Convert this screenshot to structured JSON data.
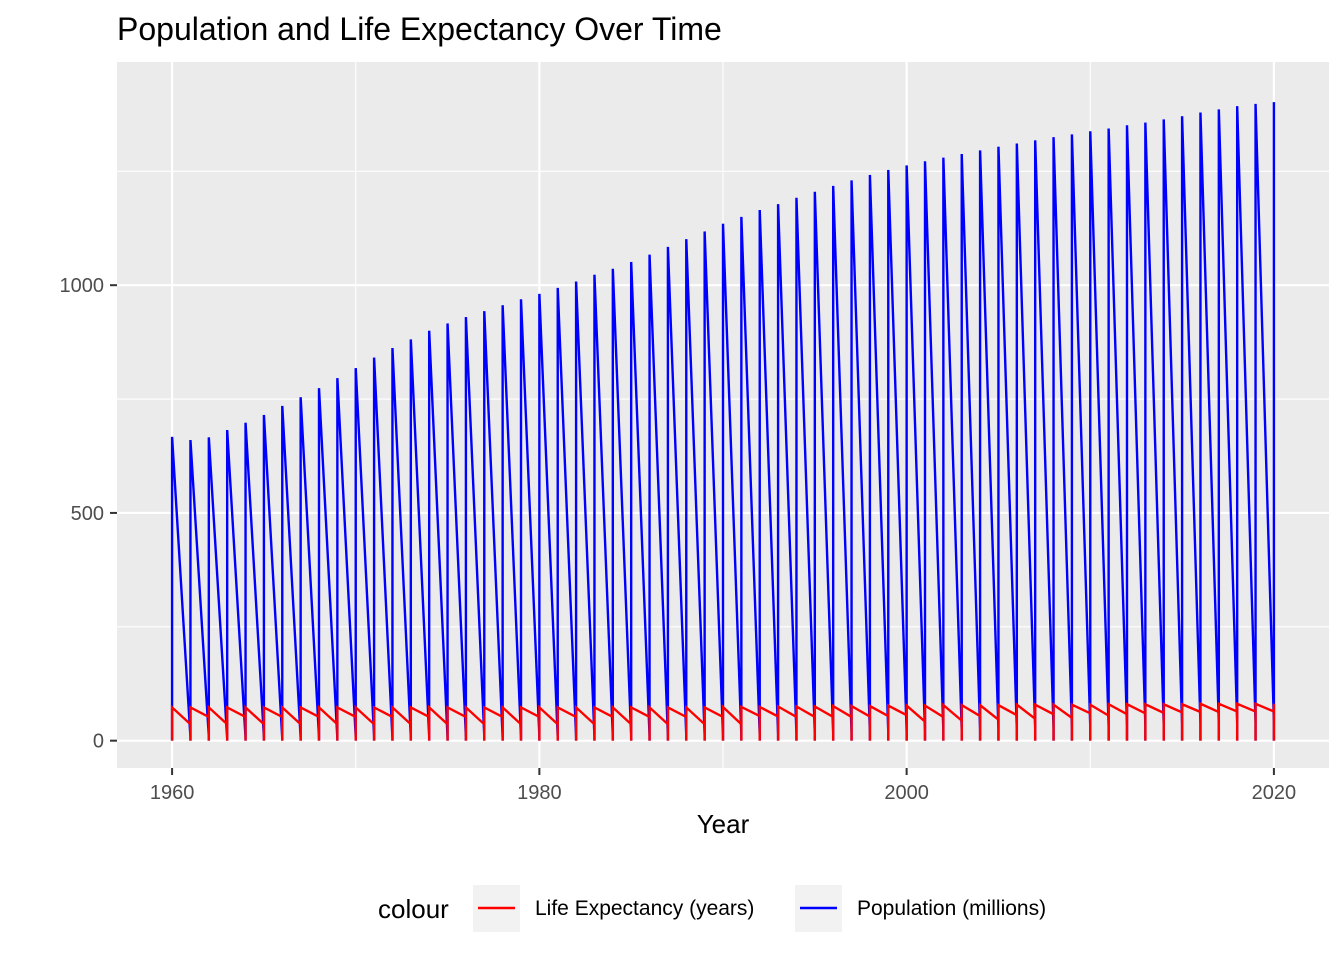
{
  "chart_data": {
    "type": "line",
    "title": "Population and Life Expectancy Over Time",
    "xlabel": "Year",
    "ylabel": "",
    "xlim": [
      1957,
      2023
    ],
    "ylim": [
      -60,
      1490
    ],
    "x_ticks": [
      "1960",
      "1980",
      "2000",
      "2020"
    ],
    "y_ticks": [
      "0",
      "500",
      "1000"
    ],
    "legend_title": "colour",
    "legend_position": "bottom",
    "grid": true,
    "series": [
      {
        "name": "Population (millions)",
        "color": "#0000ff",
        "pattern": "per year: rises vertically from 0 to the annual peak, then steps to the next year's low value",
        "x": [
          1960,
          1961,
          1962,
          1963,
          1964,
          1965,
          1966,
          1967,
          1968,
          1969,
          1970,
          1971,
          1972,
          1973,
          1974,
          1975,
          1976,
          1977,
          1978,
          1979,
          1980,
          1981,
          1982,
          1983,
          1984,
          1985,
          1986,
          1987,
          1988,
          1989,
          1990,
          1991,
          1992,
          1993,
          1994,
          1995,
          1996,
          1997,
          1998,
          1999,
          2000,
          2001,
          2002,
          2003,
          2004,
          2005,
          2006,
          2007,
          2008,
          2009,
          2010,
          2011,
          2012,
          2013,
          2014,
          2015,
          2016,
          2017,
          2018,
          2019,
          2020
        ],
        "peak": [
          667,
          660,
          666,
          682,
          698,
          715,
          735,
          754,
          774,
          796,
          818,
          841,
          862,
          881,
          900,
          916,
          930,
          943,
          956,
          969,
          981,
          994,
          1008,
          1023,
          1036,
          1051,
          1067,
          1084,
          1101,
          1118,
          1135,
          1150,
          1165,
          1178,
          1192,
          1205,
          1218,
          1230,
          1242,
          1253,
          1263,
          1272,
          1280,
          1288,
          1296,
          1304,
          1311,
          1318,
          1325,
          1331,
          1338,
          1344,
          1351,
          1357,
          1364,
          1371,
          1379,
          1386,
          1393,
          1398,
          1402
        ],
        "low": [
          5,
          7,
          9,
          5,
          6,
          8,
          5,
          6,
          8,
          5,
          7,
          9,
          5,
          7,
          9,
          6,
          8,
          10,
          6,
          8,
          10,
          7,
          8,
          9,
          9,
          10,
          10,
          10,
          11,
          11,
          11,
          11,
          12,
          13,
          14,
          15,
          16,
          17,
          18,
          19,
          20,
          20,
          21,
          22,
          23,
          24,
          25,
          26,
          27,
          28,
          30,
          31,
          32,
          33,
          34,
          35,
          36,
          37,
          38,
          39,
          40
        ]
      },
      {
        "name": "Life Expectancy (years)",
        "color": "#ff0000",
        "pattern": "per year: rises vertically from 0 to the annual peak, then steps to the next year's low value",
        "x": [
          1960,
          1961,
          1962,
          1963,
          1964,
          1965,
          1966,
          1967,
          1968,
          1969,
          1970,
          1971,
          1972,
          1973,
          1974,
          1975,
          1976,
          1977,
          1978,
          1979,
          1980,
          1981,
          1982,
          1983,
          1984,
          1985,
          1986,
          1987,
          1988,
          1989,
          1990,
          1991,
          1992,
          1993,
          1994,
          1995,
          1996,
          1997,
          1998,
          1999,
          2000,
          2001,
          2002,
          2003,
          2004,
          2005,
          2006,
          2007,
          2008,
          2009,
          2010,
          2011,
          2012,
          2013,
          2014,
          2015,
          2016,
          2017,
          2018,
          2019,
          2020
        ],
        "peak": [
          73,
          73,
          73,
          73,
          73,
          73,
          73,
          73,
          73,
          73,
          73,
          73,
          73,
          73,
          73,
          73,
          73,
          73,
          73,
          73,
          73,
          73,
          73,
          73,
          73,
          73,
          73,
          73,
          73,
          73,
          74,
          74,
          74,
          75,
          75,
          75,
          76,
          76,
          76,
          77,
          77,
          77,
          78,
          78,
          78,
          78,
          79,
          79,
          79,
          79,
          79,
          80,
          80,
          80,
          80,
          80,
          81,
          81,
          81,
          81,
          81
        ],
        "low": [
          52,
          36,
          52,
          36,
          52,
          36,
          52,
          36,
          52,
          36,
          52,
          36,
          52,
          36,
          52,
          36,
          52,
          36,
          52,
          36,
          52,
          36,
          52,
          36,
          52,
          36,
          52,
          36,
          52,
          36,
          52,
          36,
          54,
          53,
          52,
          52,
          52,
          52,
          53,
          54,
          56,
          42,
          52,
          44,
          54,
          46,
          56,
          48,
          58,
          50,
          60,
          55,
          58,
          60,
          61,
          62,
          63,
          63,
          64,
          64,
          64
        ]
      }
    ]
  }
}
